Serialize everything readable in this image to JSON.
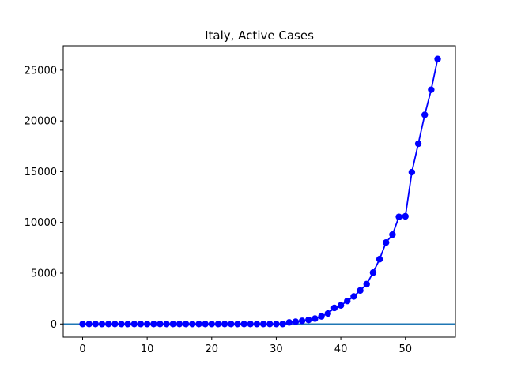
{
  "chart_data": {
    "type": "line",
    "title": "Italy, Active Cases",
    "xlabel": "",
    "ylabel": "",
    "xlim": [
      -3,
      57.75
    ],
    "ylim": [
      -1300,
      27400
    ],
    "xticks": [
      0,
      10,
      20,
      30,
      40,
      50
    ],
    "yticks": [
      0,
      5000,
      10000,
      15000,
      20000,
      25000
    ],
    "grid": false,
    "series_color": "#0000ff",
    "hline_color": "#1f77b4",
    "hline_y": 0,
    "x": [
      0,
      1,
      2,
      3,
      4,
      5,
      6,
      7,
      8,
      9,
      10,
      11,
      12,
      13,
      14,
      15,
      16,
      17,
      18,
      19,
      20,
      21,
      22,
      23,
      24,
      25,
      26,
      27,
      28,
      29,
      30,
      31,
      32,
      33,
      34,
      35,
      36,
      37,
      38,
      39,
      40,
      41,
      42,
      43,
      44,
      45,
      46,
      47,
      48,
      49,
      50,
      51,
      52,
      53,
      54,
      55
    ],
    "values": [
      0,
      0,
      0,
      0,
      0,
      0,
      0,
      0,
      0,
      0,
      0,
      0,
      0,
      0,
      0,
      0,
      0,
      0,
      0,
      0,
      0,
      0,
      0,
      0,
      0,
      0,
      0,
      0,
      0,
      0,
      0,
      3,
      150,
      220,
      310,
      400,
      530,
      750,
      1030,
      1580,
      1830,
      2260,
      2710,
      3300,
      3920,
      5060,
      6380,
      8020,
      8800,
      10550,
      10600,
      14950,
      17750,
      20600,
      23070,
      26100
    ]
  }
}
